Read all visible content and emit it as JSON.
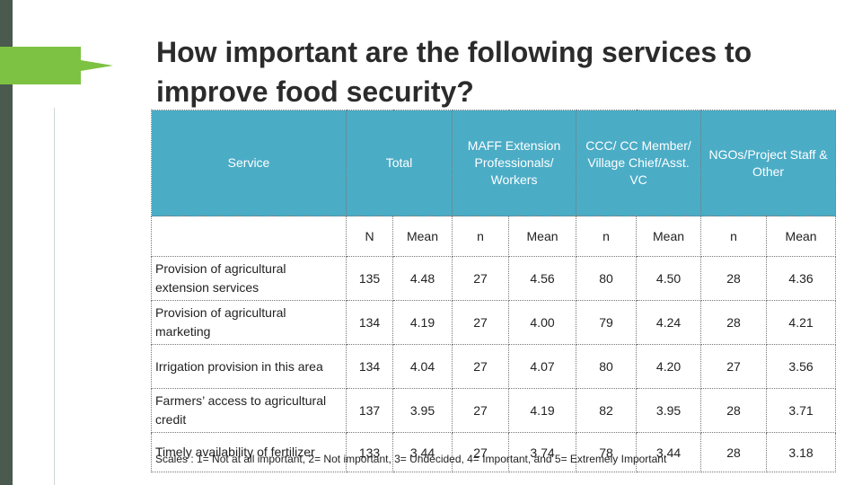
{
  "title": "How important are the following services to improve food security?",
  "headers": {
    "service": "Service",
    "total": "Total",
    "maff": "MAFF Extension Professionals/ Workers",
    "ccc": "CCC/ CC Member/ Village Chief/Asst. VC",
    "ngo": "NGOs/Project Staff & Other"
  },
  "subheaders": [
    "N",
    "Mean",
    "n",
    "Mean",
    "n",
    "Mean",
    "n",
    "Mean"
  ],
  "rows": [
    {
      "service": "Provision of agricultural extension services",
      "values": [
        "135",
        "4.48",
        "27",
        "4.56",
        "80",
        "4.50",
        "28",
        "4.36"
      ]
    },
    {
      "service": "Provision of agricultural marketing",
      "values": [
        "134",
        "4.19",
        "27",
        "4.00",
        "79",
        "4.24",
        "28",
        "4.21"
      ]
    },
    {
      "service": "Irrigation provision in this area",
      "values": [
        "134",
        "4.04",
        "27",
        "4.07",
        "80",
        "4.20",
        "27",
        "3.56"
      ]
    },
    {
      "service": "Farmers’ access to agricultural credit",
      "values": [
        "137",
        "3.95",
        "27",
        "4.19",
        "82",
        "3.95",
        "28",
        "3.71"
      ]
    },
    {
      "service": "Timely availability of fertilizer",
      "values": [
        "133",
        "3.44",
        "27",
        "3.74",
        "78",
        "3.44",
        "28",
        "3.18"
      ]
    }
  ],
  "footnote": "Scales : 1= Not at all important, 2= Not important, 3= Undecided, 4= Important, and 5= Extremely Important",
  "colors": {
    "header_bg": "#4bacc6",
    "accent_green": "#7dc242",
    "sidebar": "#4a5a4e"
  }
}
